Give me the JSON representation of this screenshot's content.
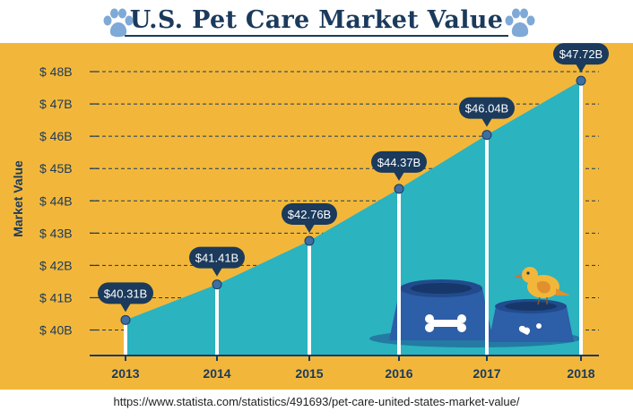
{
  "chart_data": {
    "type": "area",
    "title": "U.S. Pet Care Market Value",
    "ylabel": "Market Value",
    "categories": [
      "2013",
      "2014",
      "2015",
      "2016",
      "2017",
      "2018"
    ],
    "values": [
      40.31,
      41.41,
      42.76,
      44.37,
      46.04,
      47.72
    ],
    "data_labels": [
      "$40.31B",
      "$41.41B",
      "$42.76B",
      "$44.37B",
      "$46.04B",
      "$47.72B"
    ],
    "yticks": [
      40,
      41,
      42,
      43,
      44,
      45,
      46,
      47,
      48
    ],
    "ytick_labels": [
      "$ 40B",
      "$ 41B",
      "$ 42B",
      "$ 43B",
      "$ 44B",
      "$ 45B",
      "$ 46B",
      "$ 47B",
      "$ 48B"
    ],
    "ylim": [
      39.2,
      48.9
    ],
    "grid": true,
    "legend": "none"
  },
  "source_url": "https://www.statista.com/statistics/491693/pet-care-united-states-market-value/",
  "colors": {
    "background": "#f2b73a",
    "area": "#2bb3c0",
    "navy": "#1b3a5c",
    "marker": "#3d6fa6",
    "bowl": "#2d5ea8",
    "paw": "#7fa9d6"
  },
  "icons": [
    "paw-icon",
    "bone-icon",
    "bird-icon",
    "pet-bowl-icon"
  ]
}
